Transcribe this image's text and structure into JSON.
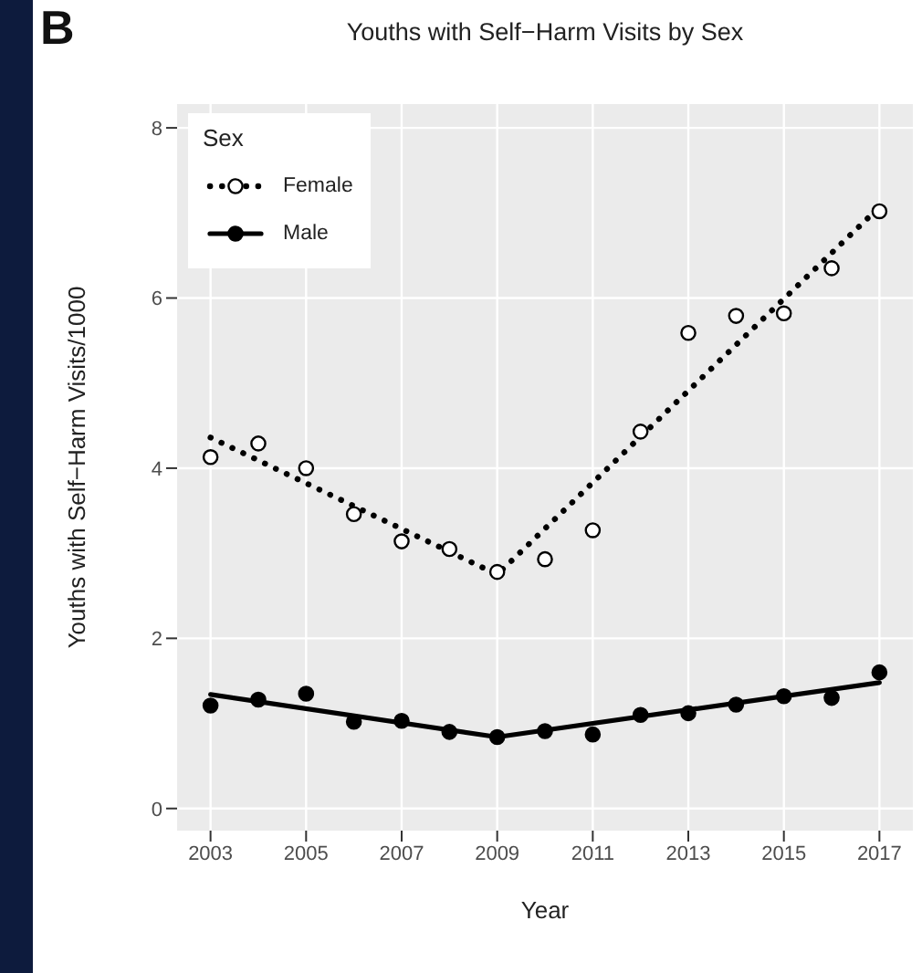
{
  "chart_data": {
    "type": "scatter",
    "title": "Youths with Self−Harm Visits by Sex",
    "xlabel": "Year",
    "ylabel": "Youths with Self−Harm Visits/1000",
    "legend_title": "Sex",
    "annotations": [
      "B"
    ],
    "x": [
      2003,
      2004,
      2005,
      2006,
      2007,
      2008,
      2009,
      2010,
      2011,
      2012,
      2013,
      2014,
      2015,
      2016,
      2017
    ],
    "xlim": [
      2002.3,
      2017.7
    ],
    "xticks": [
      2003,
      2005,
      2007,
      2009,
      2011,
      2013,
      2015,
      2017
    ],
    "ylim": [
      -0.26,
      8.28
    ],
    "yticks": [
      0,
      2,
      4,
      6,
      8
    ],
    "grid": true,
    "legend": "top left",
    "marker": "circle",
    "series": [
      {
        "name": "Female",
        "color": "#000000",
        "values": [
          4.13,
          4.29,
          4.0,
          3.46,
          3.14,
          3.05,
          2.78,
          2.93,
          3.27,
          4.43,
          5.59,
          5.79,
          5.82,
          6.35,
          7.02
        ]
      },
      {
        "type": "line",
        "color": "#000000",
        "line_style": "dotted",
        "marker": "none",
        "x": [
          2003,
          2009,
          2017
        ],
        "values": [
          4.36,
          2.75,
          7.07
        ]
      },
      {
        "name": "Male",
        "color": "#000000",
        "values": [
          1.21,
          1.28,
          1.35,
          1.02,
          1.03,
          0.9,
          0.84,
          0.91,
          0.87,
          1.1,
          1.12,
          1.22,
          1.32,
          1.3,
          1.6
        ]
      },
      {
        "type": "line",
        "color": "#000000",
        "line_style": "solid",
        "marker": "none",
        "x": [
          2003,
          2009,
          2017
        ],
        "values": [
          1.34,
          0.84,
          1.48
        ]
      }
    ]
  }
}
